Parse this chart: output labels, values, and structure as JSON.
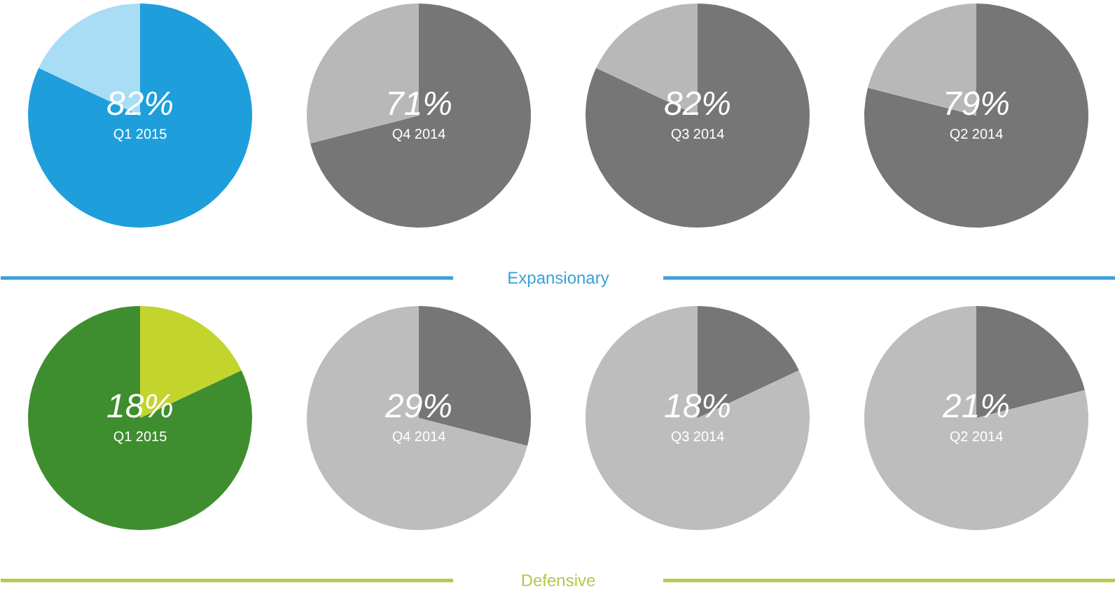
{
  "chart_data": [
    {
      "type": "pie",
      "title": "Q1 2015",
      "categories": [
        null,
        null
      ],
      "values": [
        82,
        18
      ],
      "colors": [
        "#1e9fdc",
        "#a9ddf6"
      ],
      "value_labels": [
        "82%",
        null
      ]
    },
    {
      "type": "pie",
      "title": "Q4 2014",
      "categories": [
        null,
        null
      ],
      "values": [
        71,
        29
      ],
      "colors": [
        "#767676",
        "#b8b8b8"
      ],
      "value_labels": [
        "71%",
        null
      ]
    },
    {
      "type": "pie",
      "title": "Q3 2014",
      "categories": [
        null,
        null
      ],
      "values": [
        82,
        18
      ],
      "colors": [
        "#767676",
        "#b8b8b8"
      ],
      "value_labels": [
        "82%",
        null
      ]
    },
    {
      "type": "pie",
      "title": "Q2 2014",
      "categories": [
        null,
        null
      ],
      "values": [
        79,
        21
      ],
      "colors": [
        "#767676",
        "#b8b8b8"
      ],
      "value_labels": [
        "79%",
        null
      ]
    },
    {
      "type": "other",
      "title": "Expansionary",
      "color": "#3aa0d8"
    },
    {
      "type": "pie",
      "title": "Q1 2015",
      "categories": [
        null,
        null
      ],
      "values": [
        18,
        82
      ],
      "colors": [
        "#c3d52c",
        "#3e8e2f"
      ],
      "value_labels": [
        "18%",
        null
      ]
    },
    {
      "type": "pie",
      "title": "Q4 2014",
      "categories": [
        null,
        null
      ],
      "values": [
        29,
        71
      ],
      "colors": [
        "#767676",
        "#bdbdbd"
      ],
      "value_labels": [
        "29%",
        null
      ]
    },
    {
      "type": "pie",
      "title": "Q3 2014",
      "categories": [
        null,
        null
      ],
      "values": [
        18,
        82
      ],
      "colors": [
        "#767676",
        "#bdbdbd"
      ],
      "value_labels": [
        "18%",
        null
      ]
    },
    {
      "type": "pie",
      "title": "Q2 2014",
      "categories": [
        null,
        null
      ],
      "values": [
        21,
        79
      ],
      "colors": [
        "#767676",
        "#bdbdbd"
      ],
      "value_labels": [
        "21%",
        null
      ]
    },
    {
      "type": "other",
      "title": "Defensive",
      "color": "#b3c84e"
    }
  ]
}
